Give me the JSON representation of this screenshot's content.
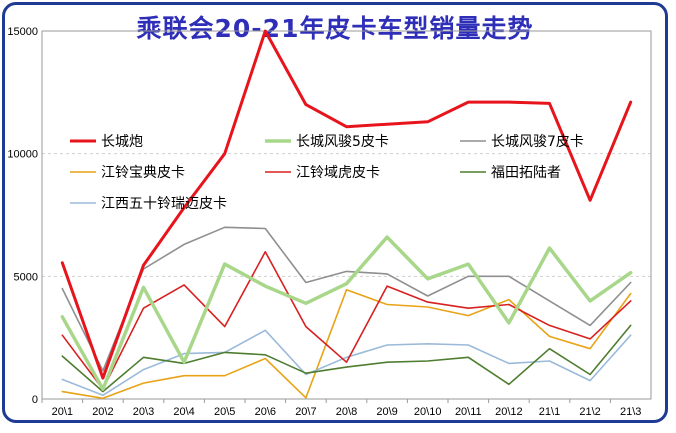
{
  "chart_data": {
    "type": "line",
    "title": "乘联会20-21年皮卡车型销量走势",
    "categories": [
      "20\\1",
      "20\\2",
      "20\\3",
      "20\\4",
      "20\\5",
      "20\\6",
      "20\\7",
      "20\\8",
      "20\\9",
      "20\\10",
      "20\\11",
      "20\\12",
      "21\\1",
      "21\\2",
      "21\\3"
    ],
    "ylim": [
      0,
      15000
    ],
    "yticks": [
      "0",
      "5000",
      "10000",
      "15000"
    ],
    "grid": true,
    "legend_position": "upper-left, inside plot",
    "series": [
      {
        "name": "长城炮",
        "color": "#e8141c",
        "width": 3,
        "values": [
          5550,
          850,
          5450,
          7800,
          10000,
          15000,
          12000,
          11100,
          11200,
          11300,
          12100,
          12100,
          12050,
          8100,
          12100
        ]
      },
      {
        "name": "长城风骏5皮卡",
        "color": "#a8d78a",
        "width": 3.5,
        "values": [
          3350,
          400,
          4550,
          1500,
          5500,
          4600,
          3900,
          4700,
          6600,
          4900,
          5500,
          3100,
          6150,
          4000,
          5150
        ]
      },
      {
        "name": "长城风骏7皮卡",
        "color": "#8f8f8f",
        "width": 1.6,
        "values": [
          4500,
          1150,
          5300,
          6300,
          7000,
          6950,
          4750,
          5200,
          5100,
          4200,
          5000,
          5000,
          4000,
          3000,
          4750
        ]
      },
      {
        "name": "江铃宝典皮卡",
        "color": "#e8a317",
        "width": 1.6,
        "values": [
          300,
          30,
          650,
          950,
          950,
          1650,
          50,
          4450,
          3850,
          3750,
          3400,
          4050,
          2550,
          2050,
          4300
        ]
      },
      {
        "name": "江铃域虎皮卡",
        "color": "#d82020",
        "width": 1.6,
        "values": [
          2600,
          400,
          3700,
          4650,
          2950,
          6000,
          2950,
          1500,
          4600,
          3950,
          3700,
          3850,
          3000,
          2450,
          4000
        ]
      },
      {
        "name": "福田拓陆者",
        "color": "#4e7d2f",
        "width": 1.6,
        "values": [
          1750,
          300,
          1700,
          1450,
          1900,
          1800,
          1050,
          1300,
          1500,
          1550,
          1700,
          600,
          2050,
          1000,
          3000
        ]
      },
      {
        "name": "江西五十铃瑞迈皮卡",
        "color": "#9bbad9",
        "width": 1.6,
        "values": [
          800,
          150,
          1200,
          1850,
          1900,
          2800,
          1000,
          1700,
          2200,
          2250,
          2200,
          1450,
          1550,
          750,
          2600
        ]
      }
    ]
  }
}
